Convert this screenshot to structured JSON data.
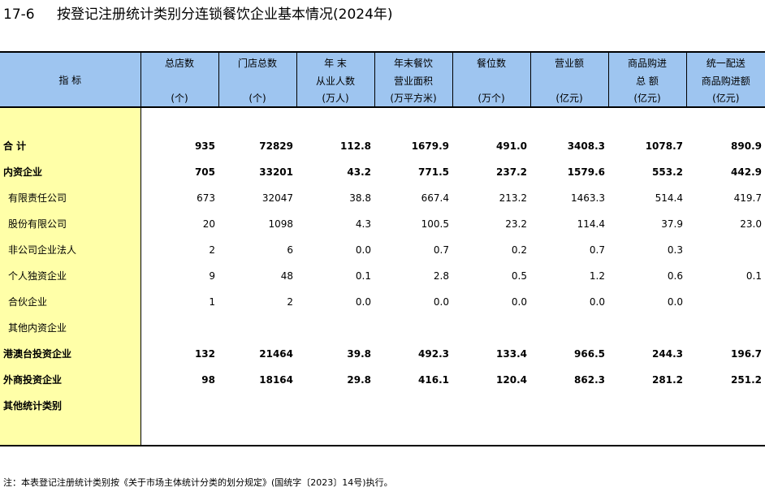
{
  "title": {
    "code": "17-6",
    "text": "按登记注册统计类别分连锁餐饮企业基本情况(2024年)"
  },
  "header": {
    "indicator": "指    标",
    "columns": [
      {
        "l1": "总店数",
        "l2": "",
        "unit": "(个)"
      },
      {
        "l1": "门店总数",
        "l2": "",
        "unit": "(个)"
      },
      {
        "l1": "年    末",
        "l2": "从业人数",
        "unit": "(万人)"
      },
      {
        "l1": "年末餐饮",
        "l2": "营业面积",
        "unit": "(万平方米)"
      },
      {
        "l1": "餐位数",
        "l2": "",
        "unit": "(万个)"
      },
      {
        "l1": "营业额",
        "l2": "",
        "unit": "(亿元)"
      },
      {
        "l1": "商品购进",
        "l2": "总    额",
        "unit": "(亿元)"
      },
      {
        "l1": "统一配送",
        "l2": "商品购进额",
        "unit": "(亿元)"
      }
    ]
  },
  "rows": [
    {
      "label": "合    计",
      "bold": true,
      "sub": false,
      "values": [
        "935",
        "72829",
        "112.8",
        "1679.9",
        "491.0",
        "3408.3",
        "1078.7",
        "890.9"
      ]
    },
    {
      "label": "内资企业",
      "bold": true,
      "sub": false,
      "values": [
        "705",
        "33201",
        "43.2",
        "771.5",
        "237.2",
        "1579.6",
        "553.2",
        "442.9"
      ]
    },
    {
      "label": "有限责任公司",
      "bold": false,
      "sub": true,
      "values": [
        "673",
        "32047",
        "38.8",
        "667.4",
        "213.2",
        "1463.3",
        "514.4",
        "419.7"
      ]
    },
    {
      "label": "股份有限公司",
      "bold": false,
      "sub": true,
      "values": [
        "20",
        "1098",
        "4.3",
        "100.5",
        "23.2",
        "114.4",
        "37.9",
        "23.0"
      ]
    },
    {
      "label": "非公司企业法人",
      "bold": false,
      "sub": true,
      "values": [
        "2",
        "6",
        "0.0",
        "0.7",
        "0.2",
        "0.7",
        "0.3",
        ""
      ]
    },
    {
      "label": "个人独资企业",
      "bold": false,
      "sub": true,
      "values": [
        "9",
        "48",
        "0.1",
        "2.8",
        "0.5",
        "1.2",
        "0.6",
        "0.1"
      ]
    },
    {
      "label": "合伙企业",
      "bold": false,
      "sub": true,
      "values": [
        "1",
        "2",
        "0.0",
        "0.0",
        "0.0",
        "0.0",
        "0.0",
        ""
      ]
    },
    {
      "label": "其他内资企业",
      "bold": false,
      "sub": true,
      "values": [
        "",
        "",
        "",
        "",
        "",
        "",
        "",
        ""
      ]
    },
    {
      "label": "港澳台投资企业",
      "bold": true,
      "sub": false,
      "values": [
        "132",
        "21464",
        "39.8",
        "492.3",
        "133.4",
        "966.5",
        "244.3",
        "196.7"
      ]
    },
    {
      "label": "外商投资企业",
      "bold": true,
      "sub": false,
      "values": [
        "98",
        "18164",
        "29.8",
        "416.1",
        "120.4",
        "862.3",
        "281.2",
        "251.2"
      ]
    },
    {
      "label": "其他统计类别",
      "bold": true,
      "sub": false,
      "values": [
        "",
        "",
        "",
        "",
        "",
        "",
        "",
        ""
      ]
    }
  ],
  "note": "注：本表登记注册统计类别按《关于市场主体统计分类的划分规定》(国统字〔2023〕14号)执行。"
}
